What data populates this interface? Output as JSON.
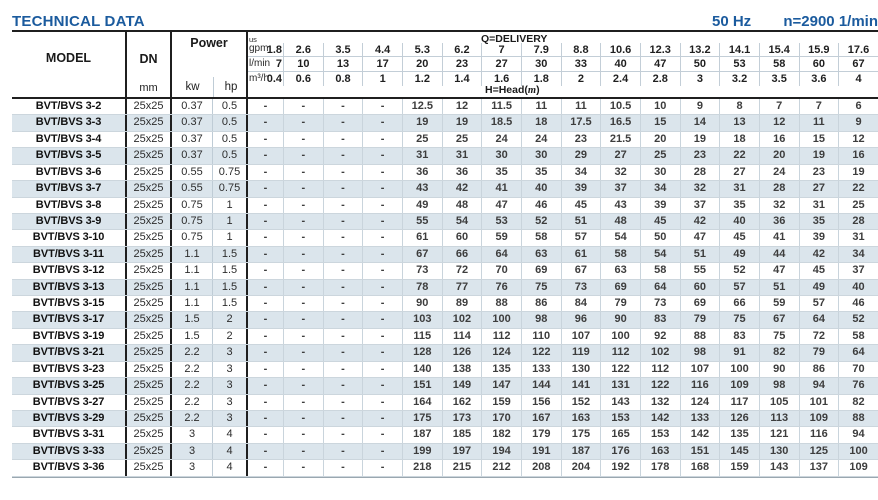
{
  "page": {
    "title": "TECHNICAL DATA",
    "frequency": "50 Hz",
    "speed": "n=2900 1/min",
    "accent_color": "#1b5b9e",
    "stripe_color": "#dbe5ec"
  },
  "table": {
    "model_header": "MODEL",
    "dn_header": "DN",
    "dn_unit": "mm",
    "power_header": "Power",
    "power_unit_kw": "kw",
    "power_unit_hp": "hp",
    "delivery_title": "Q=DELIVERY",
    "head_prefix": "H=Head(",
    "head_unit": "m",
    "head_suffix": ")",
    "unit_rows": [
      {
        "id": "us-gpm",
        "label_top": "us",
        "label": "gpm",
        "values": [
          "1.8",
          "2.6",
          "3.5",
          "4.4",
          "5.3",
          "6.2",
          "7",
          "7.9",
          "8.8",
          "10.6",
          "12.3",
          "13.2",
          "14.1",
          "15.4",
          "15.9",
          "17.6"
        ]
      },
      {
        "id": "l-min",
        "label": "l/min",
        "values": [
          "7",
          "10",
          "13",
          "17",
          "20",
          "23",
          "27",
          "30",
          "33",
          "40",
          "47",
          "50",
          "53",
          "58",
          "60",
          "67"
        ]
      },
      {
        "id": "m3-h",
        "label": "m³/h",
        "values": [
          "0.4",
          "0.6",
          "0.8",
          "1",
          "1.2",
          "1.4",
          "1.6",
          "1.8",
          "2",
          "2.4",
          "2.8",
          "3",
          "3.2",
          "3.5",
          "3.6",
          "4"
        ]
      }
    ],
    "rows": [
      {
        "model": "BVT/BVS 3-2",
        "dn": "25x25",
        "kw": "0.37",
        "hp": "0.5",
        "heads": [
          "-",
          "-",
          "-",
          "-",
          "12.5",
          "12",
          "11.5",
          "11",
          "11",
          "10.5",
          "10",
          "9",
          "8",
          "7",
          "7",
          "6"
        ]
      },
      {
        "model": "BVT/BVS 3-3",
        "dn": "25x25",
        "kw": "0.37",
        "hp": "0.5",
        "heads": [
          "-",
          "-",
          "-",
          "-",
          "19",
          "19",
          "18.5",
          "18",
          "17.5",
          "16.5",
          "15",
          "14",
          "13",
          "12",
          "11",
          "9"
        ]
      },
      {
        "model": "BVT/BVS 3-4",
        "dn": "25x25",
        "kw": "0.37",
        "hp": "0.5",
        "heads": [
          "-",
          "-",
          "-",
          "-",
          "25",
          "25",
          "24",
          "24",
          "23",
          "21.5",
          "20",
          "19",
          "18",
          "16",
          "15",
          "12"
        ]
      },
      {
        "model": "BVT/BVS 3-5",
        "dn": "25x25",
        "kw": "0.37",
        "hp": "0.5",
        "heads": [
          "-",
          "-",
          "-",
          "-",
          "31",
          "31",
          "30",
          "30",
          "29",
          "27",
          "25",
          "23",
          "22",
          "20",
          "19",
          "16"
        ]
      },
      {
        "model": "BVT/BVS 3-6",
        "dn": "25x25",
        "kw": "0.55",
        "hp": "0.75",
        "heads": [
          "-",
          "-",
          "-",
          "-",
          "36",
          "36",
          "35",
          "35",
          "34",
          "32",
          "30",
          "28",
          "27",
          "24",
          "23",
          "19"
        ]
      },
      {
        "model": "BVT/BVS 3-7",
        "dn": "25x25",
        "kw": "0.55",
        "hp": "0.75",
        "heads": [
          "-",
          "-",
          "-",
          "-",
          "43",
          "42",
          "41",
          "40",
          "39",
          "37",
          "34",
          "32",
          "31",
          "28",
          "27",
          "22"
        ]
      },
      {
        "model": "BVT/BVS 3-8",
        "dn": "25x25",
        "kw": "0.75",
        "hp": "1",
        "heads": [
          "-",
          "-",
          "-",
          "-",
          "49",
          "48",
          "47",
          "46",
          "45",
          "43",
          "39",
          "37",
          "35",
          "32",
          "31",
          "25"
        ]
      },
      {
        "model": "BVT/BVS 3-9",
        "dn": "25x25",
        "kw": "0.75",
        "hp": "1",
        "heads": [
          "-",
          "-",
          "-",
          "-",
          "55",
          "54",
          "53",
          "52",
          "51",
          "48",
          "45",
          "42",
          "40",
          "36",
          "35",
          "28"
        ]
      },
      {
        "model": "BVT/BVS 3-10",
        "dn": "25x25",
        "kw": "0.75",
        "hp": "1",
        "heads": [
          "-",
          "-",
          "-",
          "-",
          "61",
          "60",
          "59",
          "58",
          "57",
          "54",
          "50",
          "47",
          "45",
          "41",
          "39",
          "31"
        ]
      },
      {
        "model": "BVT/BVS 3-11",
        "dn": "25x25",
        "kw": "1.1",
        "hp": "1.5",
        "heads": [
          "-",
          "-",
          "-",
          "-",
          "67",
          "66",
          "64",
          "63",
          "61",
          "58",
          "54",
          "51",
          "49",
          "44",
          "42",
          "34"
        ]
      },
      {
        "model": "BVT/BVS 3-12",
        "dn": "25x25",
        "kw": "1.1",
        "hp": "1.5",
        "heads": [
          "-",
          "-",
          "-",
          "-",
          "73",
          "72",
          "70",
          "69",
          "67",
          "63",
          "58",
          "55",
          "52",
          "47",
          "45",
          "37"
        ]
      },
      {
        "model": "BVT/BVS 3-13",
        "dn": "25x25",
        "kw": "1.1",
        "hp": "1.5",
        "heads": [
          "-",
          "-",
          "-",
          "-",
          "78",
          "77",
          "76",
          "75",
          "73",
          "69",
          "64",
          "60",
          "57",
          "51",
          "49",
          "40"
        ]
      },
      {
        "model": "BVT/BVS 3-15",
        "dn": "25x25",
        "kw": "1.1",
        "hp": "1.5",
        "heads": [
          "-",
          "-",
          "-",
          "-",
          "90",
          "89",
          "88",
          "86",
          "84",
          "79",
          "73",
          "69",
          "66",
          "59",
          "57",
          "46"
        ]
      },
      {
        "model": "BVT/BVS 3-17",
        "dn": "25x25",
        "kw": "1.5",
        "hp": "2",
        "heads": [
          "-",
          "-",
          "-",
          "-",
          "103",
          "102",
          "100",
          "98",
          "96",
          "90",
          "83",
          "79",
          "75",
          "67",
          "64",
          "52"
        ]
      },
      {
        "model": "BVT/BVS 3-19",
        "dn": "25x25",
        "kw": "1.5",
        "hp": "2",
        "heads": [
          "-",
          "-",
          "-",
          "-",
          "115",
          "114",
          "112",
          "110",
          "107",
          "100",
          "92",
          "88",
          "83",
          "75",
          "72",
          "58"
        ]
      },
      {
        "model": "BVT/BVS 3-21",
        "dn": "25x25",
        "kw": "2.2",
        "hp": "3",
        "heads": [
          "-",
          "-",
          "-",
          "-",
          "128",
          "126",
          "124",
          "122",
          "119",
          "112",
          "102",
          "98",
          "91",
          "82",
          "79",
          "64"
        ]
      },
      {
        "model": "BVT/BVS 3-23",
        "dn": "25x25",
        "kw": "2.2",
        "hp": "3",
        "heads": [
          "-",
          "-",
          "-",
          "-",
          "140",
          "138",
          "135",
          "133",
          "130",
          "122",
          "112",
          "107",
          "100",
          "90",
          "86",
          "70"
        ]
      },
      {
        "model": "BVT/BVS 3-25",
        "dn": "25x25",
        "kw": "2.2",
        "hp": "3",
        "heads": [
          "-",
          "-",
          "-",
          "-",
          "151",
          "149",
          "147",
          "144",
          "141",
          "131",
          "122",
          "116",
          "109",
          "98",
          "94",
          "76"
        ]
      },
      {
        "model": "BVT/BVS 3-27",
        "dn": "25x25",
        "kw": "2.2",
        "hp": "3",
        "heads": [
          "-",
          "-",
          "-",
          "-",
          "164",
          "162",
          "159",
          "156",
          "152",
          "143",
          "132",
          "124",
          "117",
          "105",
          "101",
          "82"
        ]
      },
      {
        "model": "BVT/BVS 3-29",
        "dn": "25x25",
        "kw": "2.2",
        "hp": "3",
        "heads": [
          "-",
          "-",
          "-",
          "-",
          "175",
          "173",
          "170",
          "167",
          "163",
          "153",
          "142",
          "133",
          "126",
          "113",
          "109",
          "88"
        ]
      },
      {
        "model": "BVT/BVS 3-31",
        "dn": "25x25",
        "kw": "3",
        "hp": "4",
        "heads": [
          "-",
          "-",
          "-",
          "-",
          "187",
          "185",
          "182",
          "179",
          "175",
          "165",
          "153",
          "142",
          "135",
          "121",
          "116",
          "94"
        ]
      },
      {
        "model": "BVT/BVS 3-33",
        "dn": "25x25",
        "kw": "3",
        "hp": "4",
        "heads": [
          "-",
          "-",
          "-",
          "-",
          "199",
          "197",
          "194",
          "191",
          "187",
          "176",
          "163",
          "151",
          "145",
          "130",
          "125",
          "100"
        ]
      },
      {
        "model": "BVT/BVS 3-36",
        "dn": "25x25",
        "kw": "3",
        "hp": "4",
        "heads": [
          "-",
          "-",
          "-",
          "-",
          "218",
          "215",
          "212",
          "208",
          "204",
          "192",
          "178",
          "168",
          "159",
          "143",
          "137",
          "109"
        ]
      }
    ]
  }
}
